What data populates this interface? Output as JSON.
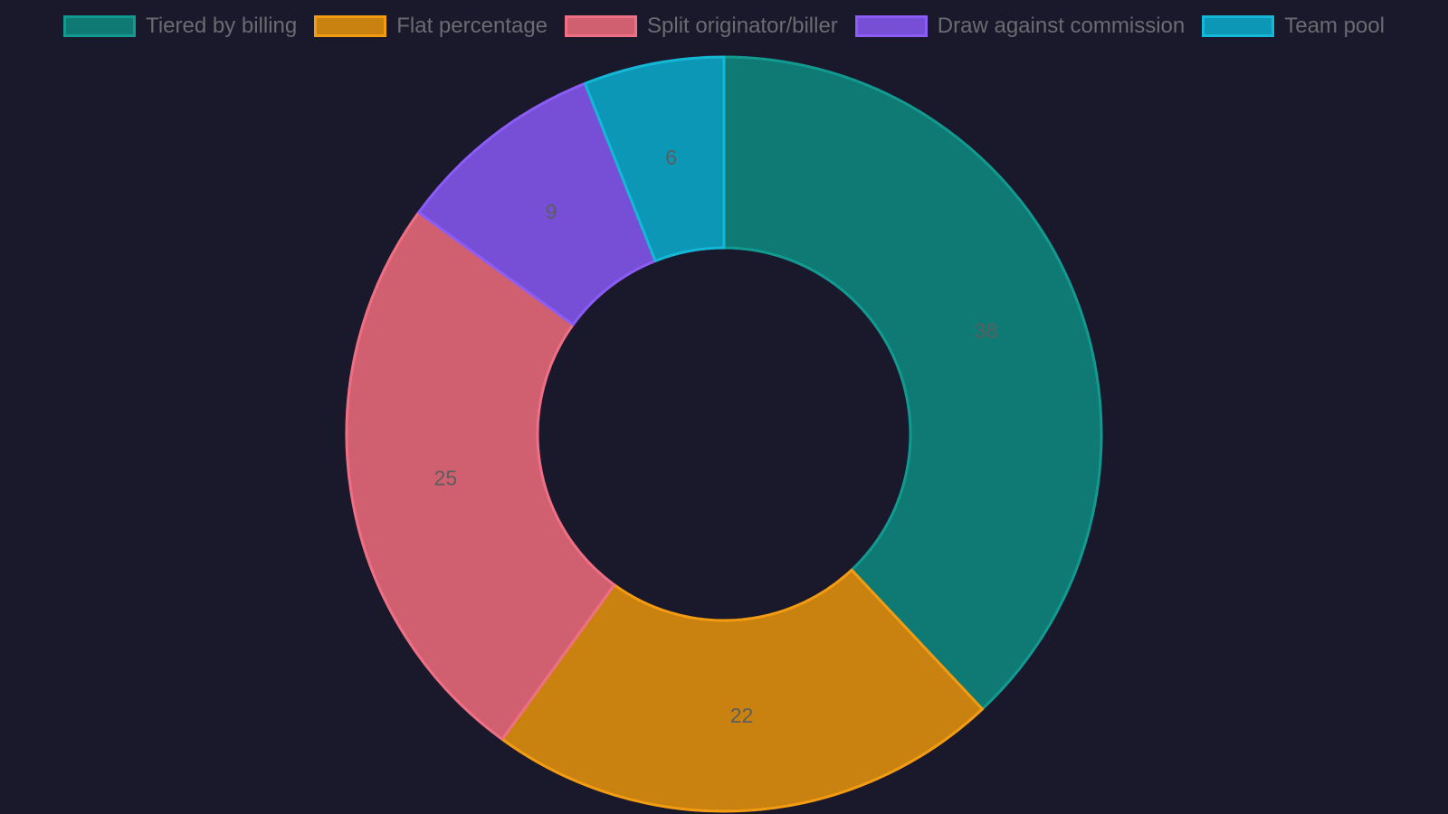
{
  "chart_data": {
    "type": "pie",
    "variant": "donut",
    "categories": [
      "Tiered by billing",
      "Flat percentage",
      "Split originator/biller",
      "Draw against commission",
      "Team pool"
    ],
    "values": [
      38,
      22,
      25,
      9,
      6
    ],
    "colors": [
      "#0f7a74",
      "#c98210",
      "#d06070",
      "#764fd6",
      "#0b97b5"
    ],
    "border_colors": [
      "#129a91",
      "#f39c12",
      "#ef6f85",
      "#8b5cf6",
      "#14b8d6"
    ],
    "data_labels": [
      "38",
      "22",
      "25",
      "9",
      "6"
    ],
    "legend_position": "top"
  }
}
